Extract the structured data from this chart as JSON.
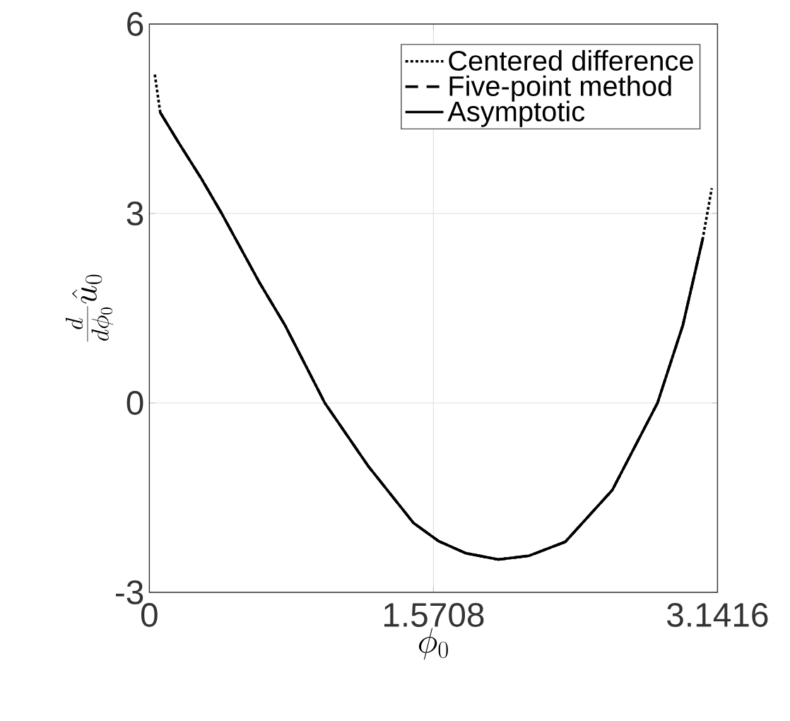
{
  "chart_data": {
    "type": "line",
    "xlabel": "\\phi_0",
    "ylabel": "\\frac{d}{d\\phi_0}\\hat{u}_0",
    "xlim": [
      0,
      3.1416
    ],
    "ylim": [
      -3,
      6
    ],
    "xticks": [
      0,
      1.5708,
      3.1416
    ],
    "yticks": [
      -3,
      0,
      3,
      6
    ],
    "grid": true,
    "legend": "top right",
    "series": [
      {
        "name": "Centered difference",
        "color": "#000000",
        "line_style": "dotted",
        "x": [
          0.03,
          0.06,
          0.16,
          0.29,
          0.4,
          0.61,
          0.75,
          0.97,
          1.21,
          1.46,
          1.6,
          1.75,
          1.93,
          2.1,
          2.3,
          2.56,
          2.81,
          2.95,
          3.06,
          3.11
        ],
        "values": [
          5.2,
          4.6,
          4.13,
          3.54,
          3.0,
          1.9,
          1.23,
          0,
          -1.0,
          -1.9,
          -2.19,
          -2.38,
          -2.48,
          -2.42,
          -2.2,
          -1.38,
          0,
          1.23,
          2.6,
          3.4
        ]
      },
      {
        "name": "Five-point method",
        "color": "#000000",
        "line_style": "dashed",
        "x": [
          0.06,
          0.16,
          0.29,
          0.4,
          0.61,
          0.75,
          0.97,
          1.21,
          1.46,
          1.6,
          1.75,
          1.93,
          2.1,
          2.3,
          2.56,
          2.81,
          2.95,
          3.06
        ],
        "values": [
          4.6,
          4.13,
          3.54,
          3.0,
          1.9,
          1.23,
          0,
          -1.0,
          -1.9,
          -2.19,
          -2.38,
          -2.48,
          -2.42,
          -2.2,
          -1.38,
          0,
          1.23,
          2.6
        ]
      },
      {
        "name": "Asymptotic",
        "color": "#000000",
        "line_style": "solid",
        "x": [
          0.06,
          0.16,
          0.29,
          0.4,
          0.61,
          0.75,
          0.97,
          1.21,
          1.46,
          1.6,
          1.75,
          1.93,
          2.1,
          2.3,
          2.56,
          2.81,
          2.95,
          3.06
        ],
        "values": [
          4.6,
          4.13,
          3.54,
          3.0,
          1.9,
          1.23,
          0,
          -1.0,
          -1.9,
          -2.19,
          -2.38,
          -2.48,
          -2.42,
          -2.2,
          -1.38,
          0,
          1.23,
          2.6
        ]
      }
    ]
  }
}
